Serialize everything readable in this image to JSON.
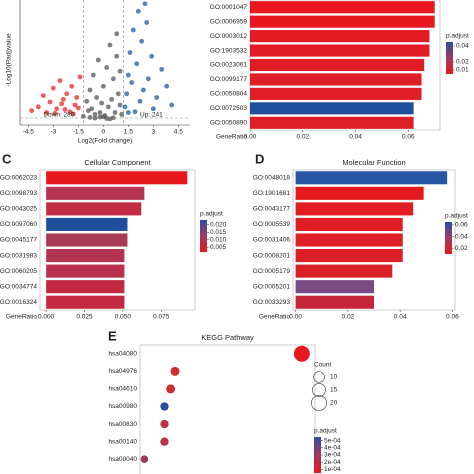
{
  "chart_data": [
    {
      "type": "scatter",
      "x_label": "Log2(Fold change)",
      "y_label": "-Log10(Padj)value",
      "xlim": [
        -5,
        5.2
      ],
      "xticks": [
        -4.5,
        -3,
        -1.5,
        0,
        1.5,
        3,
        4.5
      ],
      "ylim": [
        0,
        32
      ],
      "series": [
        {
          "name": "Down: 280",
          "color": "#e8262b",
          "x": [
            -4.3,
            -3.9,
            -3.6,
            -3.2,
            -3.0,
            -2.8,
            -2.6,
            -2.4,
            -2.2,
            -2.0,
            -1.9,
            -1.7,
            -1.6,
            -1.5,
            -1.4,
            -2.9,
            -2.3,
            -1.8,
            -3.4,
            -2.5
          ],
          "values": [
            2.5,
            3.5,
            6.5,
            4.8,
            8.5,
            3.0,
            10.5,
            5.5,
            7.0,
            2.2,
            9.0,
            4.0,
            6.0,
            3.2,
            11.5,
            1.8,
            2.8,
            1.6,
            2.0,
            4.3
          ]
        },
        {
          "name": "Up: 241",
          "color": "#1f5aa6",
          "x": [
            1.3,
            1.4,
            1.5,
            1.6,
            1.7,
            1.8,
            2.0,
            2.1,
            2.3,
            2.5,
            2.7,
            2.9,
            3.2,
            3.5,
            3.8,
            4.1,
            1.9,
            2.2,
            2.6,
            1.5,
            3.0,
            2.4
          ],
          "values": [
            3.5,
            7.0,
            12.0,
            18.0,
            10.0,
            24.0,
            15.0,
            29.0,
            21.0,
            31.0,
            11.0,
            17.0,
            6.0,
            13.5,
            9.0,
            4.0,
            2.2,
            5.0,
            26.0,
            2.0,
            3.0,
            8.0
          ]
        },
        {
          "color": "#555555",
          "x": [
            -1.2,
            -1.0,
            -0.9,
            -0.8,
            -0.7,
            -0.6,
            -0.5,
            -0.4,
            -0.3,
            -0.2,
            -0.1,
            0.0,
            0.1,
            0.2,
            0.3,
            0.4,
            0.5,
            0.6,
            0.7,
            0.8,
            0.9,
            1.0,
            1.1,
            -0.5,
            0.2,
            -0.2,
            0.6,
            0.8,
            -0.8,
            0.4,
            0.0,
            1.0
          ],
          "values": [
            1.0,
            5.0,
            2.5,
            8.0,
            3.0,
            12.0,
            1.5,
            6.0,
            16.0,
            2.0,
            4.5,
            9.0,
            1.2,
            14.0,
            3.5,
            20.0,
            5.5,
            11.0,
            2.0,
            17.0,
            7.0,
            13.0,
            1.5,
            0.5,
            0.4,
            0.8,
            0.6,
            23.0,
            0.7,
            0.3,
            0.9,
            4.0
          ]
        }
      ]
    },
    {
      "type": "barh",
      "x_label": "GeneRatio",
      "categories": [
        "GO:0001047",
        "GO:0006959",
        "GO:0003012",
        "GO:1903532",
        "GO:0023061",
        "GO:0099177",
        "GO:0050804",
        "GO:0072503",
        "GO:0050890"
      ],
      "values": [
        0.07,
        0.07,
        0.068,
        0.068,
        0.066,
        0.065,
        0.065,
        0.062,
        0.062
      ],
      "colors": [
        "#e8161e",
        "#e8161e",
        "#e41a22",
        "#e21c24",
        "#e01d26",
        "#df1e27",
        "#de1f28",
        "#1f4e9a",
        "#dc2028"
      ],
      "xlim": [
        0,
        0.072
      ],
      "xticks": [
        {
          "value": 0,
          "label": "0.00"
        },
        0.02,
        0.04,
        0.06
      ],
      "legend": {
        "title": "p.adjust",
        "lim": [
          0.005,
          0.045
        ],
        "ticks": [
          0.04,
          0.02,
          0.01
        ]
      }
    },
    {
      "type": "barh",
      "panel": "C",
      "title": "Cellular Component",
      "x_label": "GeneRatio",
      "categories": [
        "GO:0062023",
        "GO:0098793",
        "GO:0043025",
        "GO:0097060",
        "GO:0045177",
        "GO:0031983",
        "GO:0060205",
        "GO:0034774",
        "GO:0016324"
      ],
      "values": [
        0.092,
        0.064,
        0.062,
        0.053,
        0.053,
        0.051,
        0.051,
        0.051,
        0.051
      ],
      "colors": [
        "#e8161e",
        "#b5344f",
        "#c02c44",
        "#1f4e9a",
        "#a83a58",
        "#b33450",
        "#b8304c",
        "#c22840",
        "#c4283e"
      ],
      "xlim": [
        -0.004,
        0.097
      ],
      "xticks": [
        {
          "value": 0,
          "label": "0.000"
        },
        0.025,
        {
          "value": 0.05,
          "label": "0.050"
        },
        0.075
      ],
      "legend": {
        "title": "p.adjust",
        "lim": [
          0.002,
          0.023
        ],
        "ticks": [
          {
            "value": 0.02,
            "label": "0.020"
          },
          0.015,
          {
            "value": 0.01,
            "label": "0.010"
          },
          0.005
        ]
      }
    },
    {
      "type": "barh",
      "panel": "D",
      "title": "Molecular Function",
      "x_label": "GeneRatio",
      "categories": [
        "GO:0048018",
        "GO:1901681",
        "GO:0043177",
        "GO:0005539",
        "GO:0031406",
        "GO:0008201",
        "GO:0005179",
        "GO:0005201",
        "GO:0033293"
      ],
      "values": [
        0.058,
        0.049,
        0.045,
        0.041,
        0.041,
        0.041,
        0.037,
        0.03,
        0.03
      ],
      "colors": [
        "#2756a3",
        "#e41a1c",
        "#e11c22",
        "#df1d24",
        "#de1e25",
        "#dc1f26",
        "#da2027",
        "#7a4a82",
        "#c42538"
      ],
      "xlim": [
        -0.001,
        0.061
      ],
      "xticks": [
        {
          "value": 0,
          "label": "0.00"
        },
        0.02,
        0.04,
        0.06
      ],
      "legend": {
        "title": "p.adjust",
        "lim": [
          0.01,
          0.065
        ],
        "ticks": [
          0.06,
          0.04,
          0.02
        ]
      }
    },
    {
      "type": "dot",
      "panel": "E",
      "title": "KEGG Pathway",
      "categories": [
        "hsa04080",
        "hsa04976",
        "hsa04610",
        "hsa00980",
        "hsa00830",
        "hsa00140",
        "hsa00040"
      ],
      "values": [
        0.185,
        0.04,
        0.035,
        0.028,
        0.028,
        0.028,
        0.005
      ],
      "counts": [
        22,
        7,
        7,
        6,
        6,
        6,
        5
      ],
      "colors": [
        "#e8161e",
        "#d42c30",
        "#c82f38",
        "#2a4d9c",
        "#c03040",
        "#b83348",
        "#9a3c60"
      ],
      "xlim": [
        0,
        0.2
      ],
      "size_legend": {
        "title": "Count",
        "values": [
          10,
          15,
          20
        ]
      },
      "legend": {
        "title": "p.adjust",
        "lim": [
          5e-05,
          0.00055
        ],
        "ticks": [
          0.0005,
          0.0004,
          0.0003,
          0.0002,
          0.0001
        ],
        "tick_labels": [
          "5e-04",
          "4e-04",
          "3e-04",
          "2e-04",
          "1e-04"
        ]
      }
    }
  ]
}
